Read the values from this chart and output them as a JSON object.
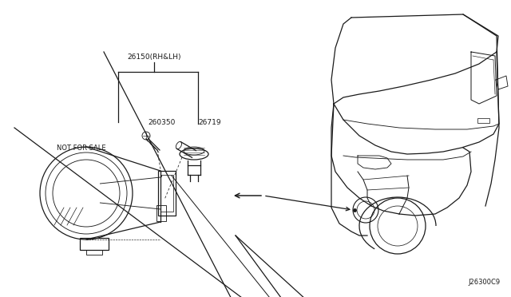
{
  "bg_color": "#ffffff",
  "line_color": "#1a1a1a",
  "text_color": "#1a1a1a",
  "label_26150": "26150(RH&LH)",
  "label_26035": "260350",
  "label_26719": "26719",
  "label_nfs": "NOT FOR SALE",
  "label_code": "J26300C9",
  "font_size": 6.5,
  "lw": 0.9
}
